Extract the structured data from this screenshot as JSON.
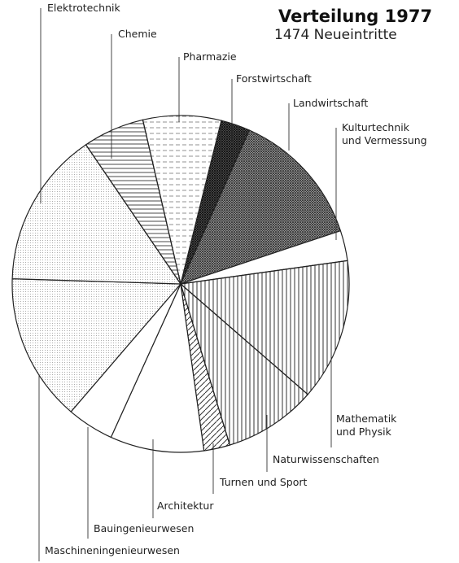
{
  "chart_data": {
    "type": "pie",
    "title": "Verteilung 1977",
    "subtitle": "1474 Neueintritte",
    "categories": [
      "Pharmazie",
      "Forstwirtschaft",
      "Landwirtschaft",
      "Kulturtechnik\nund Vermessung",
      "Mathematik\nund Physik",
      "Naturwissenschaften",
      "Turnen und Sport",
      "Architektur",
      "Bauingenieurwesen",
      "Maschineningenieurwesen",
      "Elektrotechnik",
      "Chemie"
    ],
    "values": [
      7.5,
      2.8,
      13.2,
      2.9,
      13.6,
      8.9,
      2.5,
      9.0,
      4.5,
      14.2,
      15.0,
      5.9
    ],
    "patterns": [
      "hlines-sparse",
      "cross-dense",
      "cross",
      "none",
      "vlines",
      "vlines",
      "diag",
      "none",
      "none",
      "dots",
      "dots",
      "hlines"
    ]
  }
}
